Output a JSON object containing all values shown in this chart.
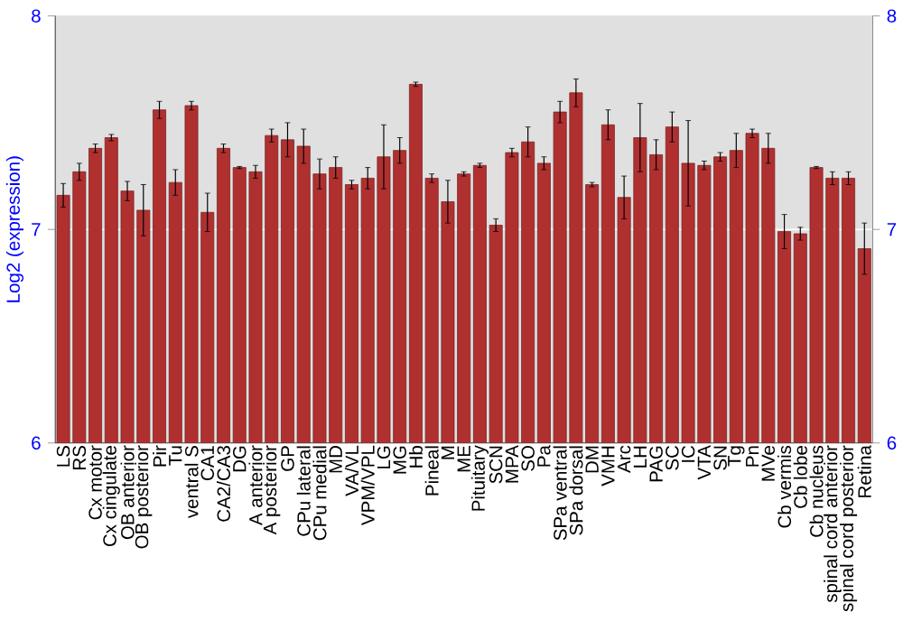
{
  "chart_data": {
    "type": "bar",
    "ylabel": "Log2 (expression)",
    "categories": [
      "LS",
      "RS",
      "Cx motor",
      "Cx cingulate",
      "OB anterior",
      "OB posterior",
      "Pir",
      "Tu",
      "ventral S",
      "CA1",
      "CA2/CA3",
      "DG",
      "A anterior",
      "A posterior",
      "GP",
      "CPu lateral",
      "CPu medial",
      "MD",
      "VA/VL",
      "VPM/VPL",
      "LG",
      "MG",
      "Hb",
      "Pineal",
      "M",
      "ME",
      "Pituitary",
      "SCN",
      "MPA",
      "SO",
      "Pa",
      "SPa ventral",
      "SPa dorsal",
      "DM",
      "VMH",
      "Arc",
      "LH",
      "PAG",
      "SC",
      "IC",
      "VTA",
      "SN",
      "Tg",
      "Pn",
      "MVe",
      "Cb vermis",
      "Cb lobe",
      "Cb nucleus",
      "spinal cord anterior",
      "spinal cord posterior",
      "Retina"
    ],
    "values": [
      7.16,
      7.27,
      7.38,
      7.43,
      7.18,
      7.09,
      7.56,
      7.22,
      7.58,
      7.08,
      7.38,
      7.29,
      7.27,
      7.44,
      7.42,
      7.39,
      7.26,
      7.29,
      7.21,
      7.24,
      7.34,
      7.37,
      7.68,
      7.24,
      7.13,
      7.26,
      7.3,
      7.02,
      7.36,
      7.41,
      7.31,
      7.55,
      7.64,
      7.21,
      7.49,
      7.15,
      7.43,
      7.35,
      7.48,
      7.31,
      7.3,
      7.34,
      7.37,
      7.45,
      7.38,
      6.99,
      6.98,
      7.29,
      7.24,
      7.24,
      6.91
    ],
    "errors": [
      0.055,
      0.04,
      0.02,
      0.015,
      0.045,
      0.12,
      0.04,
      0.06,
      0.02,
      0.09,
      0.02,
      0.005,
      0.03,
      0.03,
      0.08,
      0.08,
      0.07,
      0.05,
      0.02,
      0.05,
      0.15,
      0.06,
      0.01,
      0.02,
      0.1,
      0.01,
      0.01,
      0.03,
      0.02,
      0.07,
      0.03,
      0.05,
      0.065,
      0.01,
      0.07,
      0.1,
      0.16,
      0.07,
      0.07,
      0.2,
      0.02,
      0.02,
      0.08,
      0.02,
      0.07,
      0.08,
      0.03,
      0.005,
      0.03,
      0.03,
      0.12
    ],
    "color": "#b03030",
    "ylim": [
      6,
      8
    ],
    "yticks": [
      6,
      7,
      8
    ],
    "y2lim": [
      6,
      8
    ],
    "y2ticks": [
      6,
      7,
      8
    ],
    "grid": "y"
  }
}
